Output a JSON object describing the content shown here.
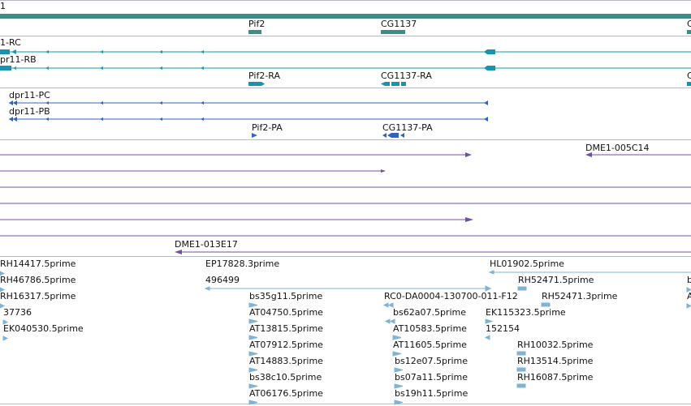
{
  "browser": {
    "chromosome_label": "1",
    "gene_labels": [
      "Pif2",
      "CG1137",
      "C"
    ],
    "transcripts_a": [
      "1-RC",
      "pr11-RB",
      "Pif2-RA",
      "CG1137-RA",
      "C"
    ],
    "transcripts_b": [
      "dpr11-PC",
      "dpr11-PB",
      "Pif2-PA",
      "CG1137-PA"
    ],
    "clone_labels": [
      "DME1-005C14",
      "DME1-013E17"
    ],
    "est_labels": [
      "RH14417.5prime",
      "EP17828.3prime",
      "HL01902.5prime",
      "RH46786.5prime",
      "RH52471.5prime",
      "b",
      "RH16317.5prime",
      "496499",
      "bs35g11.5prime",
      "RC0-DA0004-130700-011-F12",
      "RH52471.3prime",
      "A",
      "37736",
      "AT04750.5prime",
      "bs62a07.5prime",
      "EK115323.5prime",
      "EK040530.5prime",
      "AT13815.5prime",
      "AT10583.5prime",
      "152154",
      "AT07912.5prime",
      "AT11605.5prime",
      "RH10032.5prime",
      "AT14883.5prime",
      "bs12e07.5prime",
      "RH13514.5prime",
      "bs38c10.5prime",
      "bs07a11.5prime",
      "RH16087.5prime",
      "AT06176.5prime",
      "bs19h11.5prime"
    ]
  },
  "colors": {
    "gene_track": "#3a8d8b",
    "transcript": "#1795b0",
    "protein": "#2f63c1",
    "clone": "#6f4fa3",
    "est": "#7fb3d6"
  }
}
